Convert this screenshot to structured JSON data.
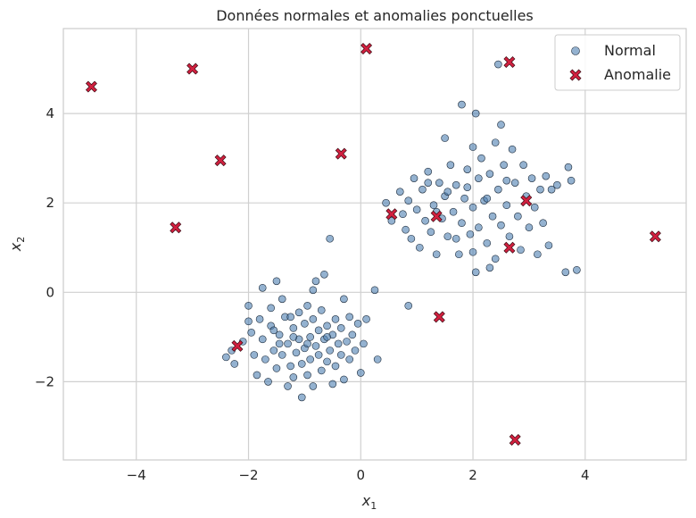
{
  "chart_data": {
    "type": "scatter",
    "title": "Données normales et anomalies ponctuelles",
    "xlabel": "x",
    "xlabel_sub": "1",
    "ylabel": "x",
    "ylabel_sub": "2",
    "xlim": [
      -5.3,
      5.8
    ],
    "ylim": [
      -3.75,
      5.9
    ],
    "xticks": [
      -4,
      -2,
      0,
      2,
      4
    ],
    "yticks": [
      -2,
      0,
      2,
      4
    ],
    "xtick_labels": [
      "−4",
      "−2",
      "0",
      "2",
      "4"
    ],
    "ytick_labels": [
      "−2",
      "0",
      "2",
      "4"
    ],
    "grid": true,
    "legend_position": "top-right",
    "series": [
      {
        "name": "Normal",
        "color": "#4c7fb0",
        "marker": "circle",
        "points": [
          [
            -2.4,
            -1.45
          ],
          [
            -2.3,
            -1.3
          ],
          [
            -2.25,
            -1.6
          ],
          [
            -2.1,
            -1.1
          ],
          [
            -2.0,
            -0.65
          ],
          [
            -1.95,
            -0.9
          ],
          [
            -1.9,
            -1.4
          ],
          [
            -1.85,
            -1.85
          ],
          [
            -1.8,
            -0.6
          ],
          [
            -1.75,
            -1.05
          ],
          [
            -1.7,
            -1.5
          ],
          [
            -1.65,
            -2.0
          ],
          [
            -1.6,
            -0.75
          ],
          [
            -1.55,
            -1.3
          ],
          [
            -1.5,
            0.25
          ],
          [
            -1.5,
            -1.7
          ],
          [
            -1.45,
            -0.95
          ],
          [
            -1.4,
            -1.4
          ],
          [
            -1.35,
            -0.55
          ],
          [
            -1.3,
            -2.1
          ],
          [
            -1.3,
            -1.15
          ],
          [
            -1.25,
            -1.65
          ],
          [
            -1.2,
            -0.8
          ],
          [
            -1.2,
            -1.9
          ],
          [
            -1.15,
            -1.35
          ],
          [
            -1.1,
            -0.45
          ],
          [
            -1.1,
            -1.05
          ],
          [
            -1.05,
            -1.6
          ],
          [
            -1.0,
            -0.7
          ],
          [
            -1.0,
            -1.25
          ],
          [
            -0.95,
            -1.85
          ],
          [
            -0.95,
            -0.3
          ],
          [
            -0.9,
            -1.0
          ],
          [
            -0.9,
            -1.5
          ],
          [
            -0.85,
            -0.6
          ],
          [
            -0.85,
            -2.1
          ],
          [
            -0.8,
            -1.2
          ],
          [
            -0.8,
            0.25
          ],
          [
            -0.75,
            -0.85
          ],
          [
            -0.75,
            -1.4
          ],
          [
            -0.7,
            -1.75
          ],
          [
            -0.7,
            -0.4
          ],
          [
            -0.65,
            -1.05
          ],
          [
            -0.65,
            0.4
          ],
          [
            -0.6,
            -1.55
          ],
          [
            -0.6,
            -0.75
          ],
          [
            -0.55,
            -1.3
          ],
          [
            -0.55,
            1.2
          ],
          [
            -0.5,
            -2.05
          ],
          [
            -0.5,
            -0.95
          ],
          [
            -0.45,
            -1.65
          ],
          [
            -0.45,
            -0.6
          ],
          [
            -0.4,
            -1.15
          ],
          [
            -0.35,
            -1.4
          ],
          [
            -0.35,
            -0.8
          ],
          [
            -0.3,
            -1.95
          ],
          [
            -0.25,
            -1.1
          ],
          [
            -0.2,
            -0.55
          ],
          [
            -0.2,
            -1.5
          ],
          [
            -0.15,
            -0.95
          ],
          [
            -0.1,
            -1.3
          ],
          [
            -0.05,
            -0.7
          ],
          [
            0.0,
            -1.8
          ],
          [
            0.05,
            -1.15
          ],
          [
            0.1,
            -0.6
          ],
          [
            0.3,
            -1.5
          ],
          [
            -1.75,
            0.1
          ],
          [
            -2.0,
            -0.3
          ],
          [
            -1.6,
            -0.35
          ],
          [
            -1.4,
            -0.15
          ],
          [
            -0.3,
            -0.15
          ],
          [
            0.25,
            0.05
          ],
          [
            -1.05,
            -2.35
          ],
          [
            -0.85,
            0.05
          ],
          [
            -1.55,
            -0.85
          ],
          [
            -1.2,
            -1.0
          ],
          [
            -0.95,
            -1.15
          ],
          [
            -0.6,
            -1.0
          ],
          [
            -1.45,
            -1.15
          ],
          [
            -1.25,
            -0.55
          ],
          [
            0.45,
            2.0
          ],
          [
            0.55,
            1.6
          ],
          [
            0.7,
            2.25
          ],
          [
            0.75,
            1.75
          ],
          [
            0.8,
            1.4
          ],
          [
            0.85,
            2.05
          ],
          [
            0.9,
            1.2
          ],
          [
            0.95,
            2.55
          ],
          [
            1.0,
            1.85
          ],
          [
            1.05,
            1.0
          ],
          [
            1.1,
            2.3
          ],
          [
            1.15,
            1.6
          ],
          [
            1.2,
            2.7
          ],
          [
            1.25,
            1.35
          ],
          [
            1.3,
            1.95
          ],
          [
            1.35,
            0.85
          ],
          [
            1.4,
            2.45
          ],
          [
            1.45,
            1.65
          ],
          [
            1.5,
            2.15
          ],
          [
            1.5,
            3.45
          ],
          [
            1.55,
            1.25
          ],
          [
            1.6,
            2.85
          ],
          [
            1.65,
            1.8
          ],
          [
            1.7,
            2.4
          ],
          [
            1.75,
            0.85
          ],
          [
            1.8,
            1.55
          ],
          [
            1.8,
            4.2
          ],
          [
            1.85,
            2.1
          ],
          [
            1.9,
            2.75
          ],
          [
            1.95,
            1.3
          ],
          [
            2.0,
            3.25
          ],
          [
            2.0,
            1.9
          ],
          [
            2.05,
            0.45
          ],
          [
            2.1,
            2.55
          ],
          [
            2.1,
            1.45
          ],
          [
            2.15,
            3.0
          ],
          [
            2.2,
            2.05
          ],
          [
            2.25,
            1.1
          ],
          [
            2.3,
            2.65
          ],
          [
            2.35,
            1.7
          ],
          [
            2.4,
            3.35
          ],
          [
            2.4,
            0.75
          ],
          [
            2.45,
            2.3
          ],
          [
            2.5,
            1.5
          ],
          [
            2.5,
            3.75
          ],
          [
            2.55,
            2.85
          ],
          [
            2.6,
            1.95
          ],
          [
            2.65,
            1.25
          ],
          [
            2.7,
            3.2
          ],
          [
            2.75,
            2.45
          ],
          [
            2.8,
            1.7
          ],
          [
            2.85,
            0.95
          ],
          [
            2.9,
            2.85
          ],
          [
            2.95,
            2.15
          ],
          [
            3.0,
            1.45
          ],
          [
            3.05,
            2.55
          ],
          [
            3.1,
            1.9
          ],
          [
            3.15,
            0.85
          ],
          [
            3.2,
            2.3
          ],
          [
            3.25,
            1.55
          ],
          [
            3.3,
            2.6
          ],
          [
            3.35,
            1.05
          ],
          [
            3.4,
            2.3
          ],
          [
            3.5,
            2.4
          ],
          [
            3.65,
            0.45
          ],
          [
            3.75,
            2.5
          ],
          [
            3.85,
            0.5
          ],
          [
            2.45,
            5.1
          ],
          [
            2.05,
            4.0
          ],
          [
            0.85,
            -0.3
          ],
          [
            1.2,
            2.45
          ],
          [
            1.55,
            2.25
          ],
          [
            1.9,
            2.35
          ],
          [
            2.25,
            2.1
          ],
          [
            1.7,
            1.2
          ],
          [
            2.0,
            0.9
          ],
          [
            2.6,
            2.5
          ],
          [
            1.35,
            1.8
          ],
          [
            3.7,
            2.8
          ],
          [
            2.3,
            0.55
          ]
        ]
      },
      {
        "name": "Anomalie",
        "color": "#d1203f",
        "marker": "x",
        "points": [
          [
            -4.8,
            4.6
          ],
          [
            -3.0,
            5.0
          ],
          [
            -2.5,
            2.95
          ],
          [
            -3.3,
            1.45
          ],
          [
            -0.35,
            3.1
          ],
          [
            0.1,
            5.45
          ],
          [
            0.55,
            1.75
          ],
          [
            1.35,
            1.7
          ],
          [
            2.95,
            2.05
          ],
          [
            2.65,
            1.0
          ],
          [
            2.65,
            5.15
          ],
          [
            5.25,
            1.25
          ],
          [
            1.4,
            -0.55
          ],
          [
            -2.2,
            -1.2
          ],
          [
            2.75,
            -3.3
          ]
        ]
      }
    ]
  }
}
